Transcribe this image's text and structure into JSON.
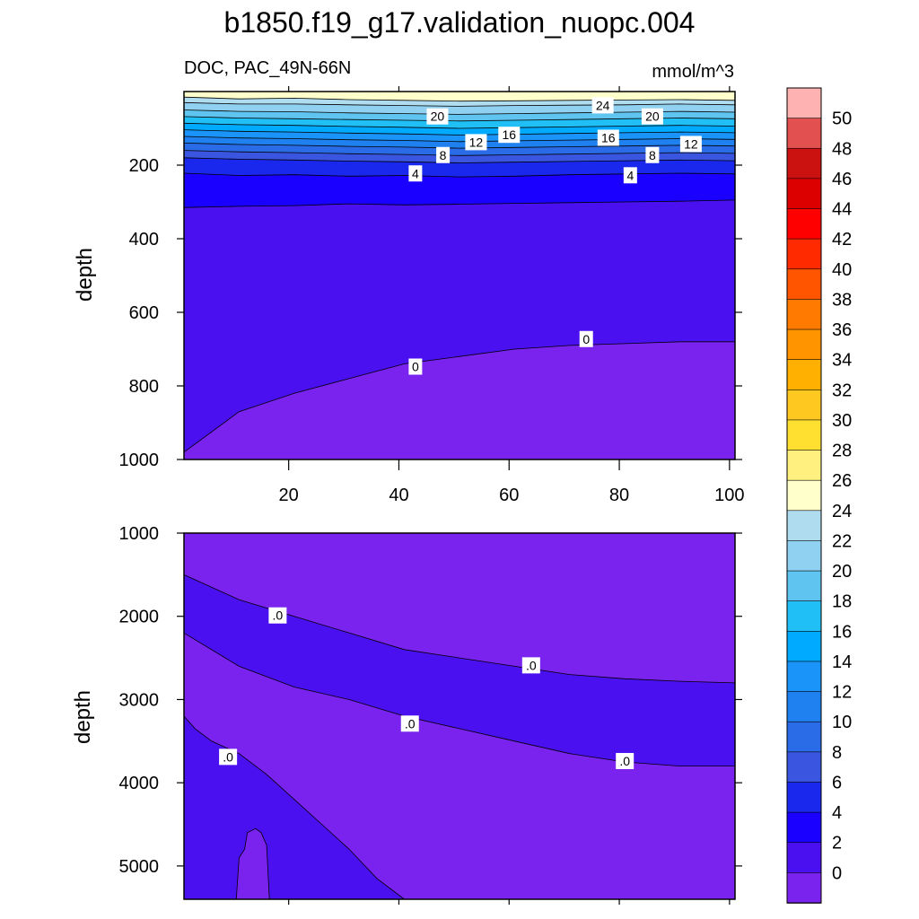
{
  "title": "b1850.f19_g17.validation_nuopc.004",
  "chart_data": [
    {
      "type": "contour",
      "panel": "upper",
      "subtitle_left": "DOC, PAC_49N-66N",
      "subtitle_right": "mmol/m^3",
      "ylabel": "depth",
      "xlabel": "",
      "xlim": [
        1,
        101
      ],
      "ylim": [
        1000,
        0
      ],
      "x_ticks": [
        "20",
        "40",
        "60",
        "80",
        "100"
      ],
      "y_ticks": [
        "200",
        "400",
        "600",
        "800",
        "1000"
      ],
      "contour_lines": [
        {
          "level": 24,
          "depth": [
            15,
            20,
            18,
            22,
            24,
            26,
            25,
            24,
            23,
            22,
            24
          ]
        },
        {
          "level": 22,
          "depth": [
            30,
            34,
            34,
            36,
            38,
            40,
            38,
            37,
            36,
            34,
            36
          ]
        },
        {
          "level": 20,
          "depth": [
            50,
            54,
            55,
            58,
            60,
            62,
            60,
            58,
            56,
            54,
            56
          ]
        },
        {
          "level": 18,
          "depth": [
            68,
            72,
            74,
            76,
            78,
            80,
            78,
            76,
            74,
            72,
            74
          ]
        },
        {
          "level": 16,
          "depth": [
            86,
            90,
            92,
            95,
            97,
            100,
            98,
            96,
            94,
            92,
            94
          ]
        },
        {
          "level": 14,
          "depth": [
            104,
            108,
            110,
            113,
            115,
            118,
            116,
            114,
            112,
            110,
            112
          ]
        },
        {
          "level": 12,
          "depth": [
            122,
            126,
            128,
            131,
            133,
            136,
            134,
            132,
            130,
            128,
            130
          ]
        },
        {
          "level": 10,
          "depth": [
            140,
            144,
            146,
            149,
            151,
            154,
            152,
            150,
            148,
            146,
            148
          ]
        },
        {
          "level": 8,
          "depth": [
            160,
            164,
            166,
            169,
            171,
            174,
            172,
            170,
            168,
            166,
            168
          ]
        },
        {
          "level": 6,
          "depth": [
            180,
            184,
            186,
            189,
            191,
            194,
            192,
            190,
            188,
            186,
            188
          ]
        },
        {
          "level": 4,
          "depth": [
            222,
            228,
            226,
            230,
            228,
            232,
            230,
            226,
            224,
            222,
            224
          ]
        },
        {
          "level": 2,
          "depth": [
            315,
            312,
            310,
            305,
            308,
            306,
            304,
            302,
            300,
            298,
            295
          ]
        },
        {
          "level": 0,
          "depth": [
            980,
            870,
            820,
            780,
            740,
            720,
            700,
            690,
            685,
            680,
            680
          ]
        }
      ],
      "contour_labels": [
        {
          "text": "24",
          "x": 77,
          "depth": 40
        },
        {
          "text": "20",
          "x": 47,
          "depth": 70
        },
        {
          "text": "20",
          "x": 86,
          "depth": 70
        },
        {
          "text": "16",
          "x": 60,
          "depth": 120
        },
        {
          "text": "16",
          "x": 78,
          "depth": 128
        },
        {
          "text": "12",
          "x": 54,
          "depth": 140
        },
        {
          "text": "12",
          "x": 93,
          "depth": 145
        },
        {
          "text": "8",
          "x": 48,
          "depth": 175
        },
        {
          "text": "8",
          "x": 86,
          "depth": 175
        },
        {
          "text": "4",
          "x": 43,
          "depth": 225
        },
        {
          "text": "4",
          "x": 82,
          "depth": 230
        },
        {
          "text": "0",
          "x": 43,
          "depth": 750
        },
        {
          "text": "0",
          "x": 74,
          "depth": 675
        }
      ]
    },
    {
      "type": "contour",
      "panel": "lower",
      "ylabel": "depth",
      "xlabel": "",
      "xlim": [
        1,
        101
      ],
      "ylim": [
        5400,
        1000
      ],
      "x_ticks": [],
      "y_ticks": [
        "1000",
        "2000",
        "3000",
        "4000",
        "5000"
      ],
      "regions": [
        {
          "level": "<0",
          "note": "upper band to top boundary"
        },
        {
          "level": "0-2",
          "note": "middle band between boundaries"
        },
        {
          "level": "<0",
          "note": "lower band"
        },
        {
          "level": "0-2",
          "note": "bottom-left pocket"
        }
      ],
      "boundary_upper_depth": [
        1500,
        1800,
        2000,
        2200,
        2400,
        2500,
        2600,
        2700,
        2750,
        2780,
        2800
      ],
      "boundary_lower_depth": [
        2200,
        2600,
        2850,
        3000,
        3200,
        3350,
        3500,
        3650,
        3750,
        3800,
        3800
      ],
      "contour_labels": [
        {
          "text": ".0",
          "x": 18,
          "depth": 2000
        },
        {
          "text": ".0",
          "x": 64,
          "depth": 2600
        },
        {
          "text": ".0",
          "x": 42,
          "depth": 3300
        },
        {
          "text": ".0",
          "x": 9,
          "depth": 3700
        },
        {
          "text": ".0",
          "x": 81,
          "depth": 3750
        }
      ]
    }
  ],
  "colorbar": {
    "labels": [
      "50",
      "48",
      "46",
      "44",
      "42",
      "40",
      "38",
      "36",
      "34",
      "32",
      "30",
      "28",
      "26",
      "24",
      "22",
      "20",
      "18",
      "16",
      "14",
      "12",
      "10",
      "8",
      "6",
      "4",
      "2",
      "0"
    ],
    "colors": [
      "#ffb2b2",
      "#e35050",
      "#cc1111",
      "#dd0000",
      "#ff0000",
      "#ff2a00",
      "#ff5500",
      "#ff7a00",
      "#ff9400",
      "#ffb000",
      "#ffc820",
      "#ffe030",
      "#fff080",
      "#ffffcc",
      "#b0dcf0",
      "#90d0f0",
      "#60c4f0",
      "#20bff5",
      "#00aaff",
      "#1a94f8",
      "#1f80ef",
      "#2a6be8",
      "#3a55e0",
      "#1a28ee",
      "#1a00ff",
      "#4a10f0",
      "#7a22ee"
    ]
  }
}
